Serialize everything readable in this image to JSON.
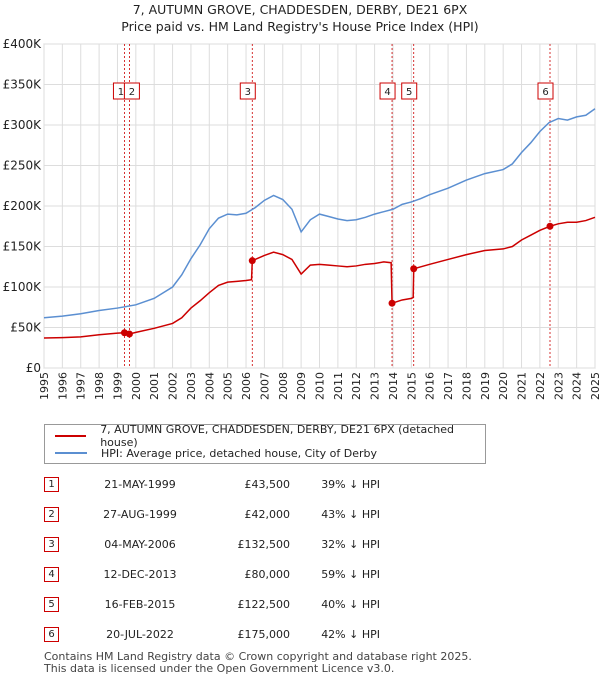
{
  "title": {
    "line1": "7, AUTUMN GROVE, CHADDESDEN, DERBY, DE21 6PX",
    "line2": "Price paid vs. HM Land Registry's House Price Index (HPI)"
  },
  "chart_data": {
    "type": "line",
    "xlim": [
      1995,
      2025
    ],
    "ylim": [
      0,
      400000
    ],
    "y_ticks": [
      {
        "value": 0,
        "label": "£0"
      },
      {
        "value": 50000,
        "label": "£50K"
      },
      {
        "value": 100000,
        "label": "£100K"
      },
      {
        "value": 150000,
        "label": "£150K"
      },
      {
        "value": 200000,
        "label": "£200K"
      },
      {
        "value": 250000,
        "label": "£250K"
      },
      {
        "value": 300000,
        "label": "£300K"
      },
      {
        "value": 350000,
        "label": "£350K"
      },
      {
        "value": 400000,
        "label": "£400K"
      }
    ],
    "x_ticks": [
      "1995",
      "1996",
      "1997",
      "1998",
      "1999",
      "2000",
      "2001",
      "2002",
      "2003",
      "2004",
      "2005",
      "2006",
      "2007",
      "2008",
      "2009",
      "2010",
      "2011",
      "2012",
      "2013",
      "2014",
      "2015",
      "2016",
      "2017",
      "2018",
      "2019",
      "2020",
      "2021",
      "2022",
      "2023",
      "2024",
      "2025"
    ],
    "series": [
      {
        "name": "7, AUTUMN GROVE, CHADDESDEN, DERBY, DE21 6PX (detached house)",
        "color": "#cc0000",
        "points": [
          [
            1995.0,
            37000
          ],
          [
            1996.0,
            37500
          ],
          [
            1997.0,
            38500
          ],
          [
            1998.0,
            41000
          ],
          [
            1999.0,
            43000
          ],
          [
            1999.38,
            43500
          ],
          [
            1999.65,
            42000
          ],
          [
            2000.0,
            44000
          ],
          [
            2001.0,
            49000
          ],
          [
            2002.0,
            55000
          ],
          [
            2002.5,
            62000
          ],
          [
            2003.0,
            74000
          ],
          [
            2003.5,
            83000
          ],
          [
            2004.0,
            93000
          ],
          [
            2004.5,
            102000
          ],
          [
            2005.0,
            106000
          ],
          [
            2005.5,
            107000
          ],
          [
            2006.0,
            108000
          ],
          [
            2006.3,
            109000
          ],
          [
            2006.34,
            132500
          ],
          [
            2007.0,
            139000
          ],
          [
            2007.5,
            143000
          ],
          [
            2008.0,
            140000
          ],
          [
            2008.5,
            134000
          ],
          [
            2009.0,
            116000
          ],
          [
            2009.5,
            127000
          ],
          [
            2010.0,
            128000
          ],
          [
            2010.5,
            127000
          ],
          [
            2011.0,
            126000
          ],
          [
            2011.5,
            125000
          ],
          [
            2012.0,
            126000
          ],
          [
            2012.5,
            128000
          ],
          [
            2013.0,
            129000
          ],
          [
            2013.5,
            131000
          ],
          [
            2013.9,
            130000
          ],
          [
            2013.95,
            80000
          ],
          [
            2014.5,
            84000
          ],
          [
            2015.0,
            86000
          ],
          [
            2015.1,
            87000
          ],
          [
            2015.13,
            122500
          ],
          [
            2016.0,
            128000
          ],
          [
            2017.0,
            134000
          ],
          [
            2018.0,
            140000
          ],
          [
            2019.0,
            145000
          ],
          [
            2020.0,
            147000
          ],
          [
            2020.5,
            150000
          ],
          [
            2021.0,
            158000
          ],
          [
            2021.5,
            164000
          ],
          [
            2022.0,
            170000
          ],
          [
            2022.55,
            175000
          ],
          [
            2023.0,
            178000
          ],
          [
            2023.5,
            180000
          ],
          [
            2024.0,
            180000
          ],
          [
            2024.5,
            182000
          ],
          [
            2025.0,
            186000
          ]
        ]
      },
      {
        "name": "HPI: Average price, detached house, City of Derby",
        "color": "#5b8fd1",
        "points": [
          [
            1995.0,
            62000
          ],
          [
            1996.0,
            64000
          ],
          [
            1997.0,
            67000
          ],
          [
            1998.0,
            71000
          ],
          [
            1999.0,
            74000
          ],
          [
            2000.0,
            78000
          ],
          [
            2001.0,
            86000
          ],
          [
            2002.0,
            100000
          ],
          [
            2002.5,
            115000
          ],
          [
            2003.0,
            135000
          ],
          [
            2003.5,
            152000
          ],
          [
            2004.0,
            172000
          ],
          [
            2004.5,
            185000
          ],
          [
            2005.0,
            190000
          ],
          [
            2005.5,
            189000
          ],
          [
            2006.0,
            191000
          ],
          [
            2006.5,
            198000
          ],
          [
            2007.0,
            207000
          ],
          [
            2007.5,
            213000
          ],
          [
            2008.0,
            208000
          ],
          [
            2008.5,
            196000
          ],
          [
            2009.0,
            168000
          ],
          [
            2009.5,
            183000
          ],
          [
            2010.0,
            190000
          ],
          [
            2010.5,
            187000
          ],
          [
            2011.0,
            184000
          ],
          [
            2011.5,
            182000
          ],
          [
            2012.0,
            183000
          ],
          [
            2012.5,
            186000
          ],
          [
            2013.0,
            190000
          ],
          [
            2013.5,
            193000
          ],
          [
            2014.0,
            196000
          ],
          [
            2014.5,
            202000
          ],
          [
            2015.0,
            205000
          ],
          [
            2015.5,
            209000
          ],
          [
            2016.0,
            214000
          ],
          [
            2017.0,
            222000
          ],
          [
            2018.0,
            232000
          ],
          [
            2019.0,
            240000
          ],
          [
            2020.0,
            245000
          ],
          [
            2020.5,
            252000
          ],
          [
            2021.0,
            266000
          ],
          [
            2021.5,
            278000
          ],
          [
            2022.0,
            292000
          ],
          [
            2022.5,
            303000
          ],
          [
            2023.0,
            308000
          ],
          [
            2023.5,
            306000
          ],
          [
            2024.0,
            310000
          ],
          [
            2024.5,
            312000
          ],
          [
            2025.0,
            320000
          ]
        ]
      }
    ],
    "markers": [
      {
        "label": "1",
        "x": 1999.38,
        "price": 43500
      },
      {
        "label": "2",
        "x": 1999.65,
        "price": 42000
      },
      {
        "label": "3",
        "x": 2006.34,
        "price": 132500
      },
      {
        "label": "4",
        "x": 2013.95,
        "price": 80000
      },
      {
        "label": "5",
        "x": 2015.13,
        "price": 122500
      },
      {
        "label": "6",
        "x": 2022.55,
        "price": 175000
      }
    ]
  },
  "legend": {
    "series1": "7, AUTUMN GROVE, CHADDESDEN, DERBY, DE21 6PX (detached house)",
    "series2": "HPI: Average price, detached house, City of Derby"
  },
  "transactions": [
    {
      "num": "1",
      "date": "21-MAY-1999",
      "price": "£43,500",
      "hpi": "39% ↓ HPI"
    },
    {
      "num": "2",
      "date": "27-AUG-1999",
      "price": "£42,000",
      "hpi": "43% ↓ HPI"
    },
    {
      "num": "3",
      "date": "04-MAY-2006",
      "price": "£132,500",
      "hpi": "32% ↓ HPI"
    },
    {
      "num": "4",
      "date": "12-DEC-2013",
      "price": "£80,000",
      "hpi": "59% ↓ HPI"
    },
    {
      "num": "5",
      "date": "16-FEB-2015",
      "price": "£122,500",
      "hpi": "40% ↓ HPI"
    },
    {
      "num": "6",
      "date": "20-JUL-2022",
      "price": "£175,000",
      "hpi": "42% ↓ HPI"
    }
  ],
  "footer": {
    "line1": "Contains HM Land Registry data © Crown copyright and database right 2025.",
    "line2": "This data is licensed under the Open Government Licence v3.0."
  }
}
